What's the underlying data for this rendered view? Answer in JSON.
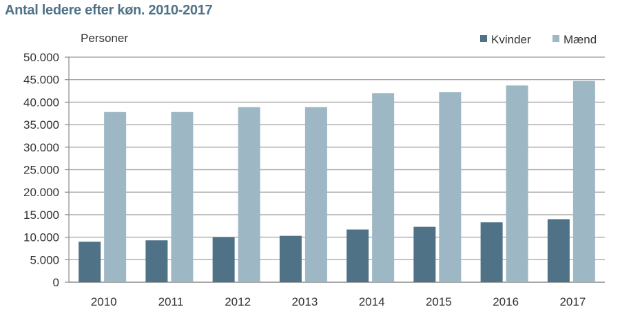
{
  "title": "Antal ledere efter køn. 2010-2017",
  "chart_data": {
    "type": "bar",
    "title": "Antal ledere efter køn. 2010-2017",
    "ylabel": "Personer",
    "xlabel": "",
    "categories": [
      "2010",
      "2011",
      "2012",
      "2013",
      "2014",
      "2015",
      "2016",
      "2017"
    ],
    "series": [
      {
        "name": "Kvinder",
        "color": "#4f7287",
        "values": [
          9000,
          9300,
          10000,
          10300,
          11700,
          12300,
          13300,
          14000
        ]
      },
      {
        "name": "Mænd",
        "color": "#9db7c5",
        "values": [
          37800,
          37800,
          38900,
          38900,
          42000,
          42200,
          43700,
          44700
        ]
      }
    ],
    "ylim": [
      0,
      50000
    ],
    "yticks": [
      0,
      5000,
      10000,
      15000,
      20000,
      25000,
      30000,
      35000,
      40000,
      45000,
      50000
    ],
    "ytick_labels": [
      "0",
      "5.000",
      "10.000",
      "15.000",
      "20.000",
      "25.000",
      "30.000",
      "35.000",
      "40.000",
      "45.000",
      "50.000"
    ],
    "grid": true,
    "legend": "top-right"
  }
}
